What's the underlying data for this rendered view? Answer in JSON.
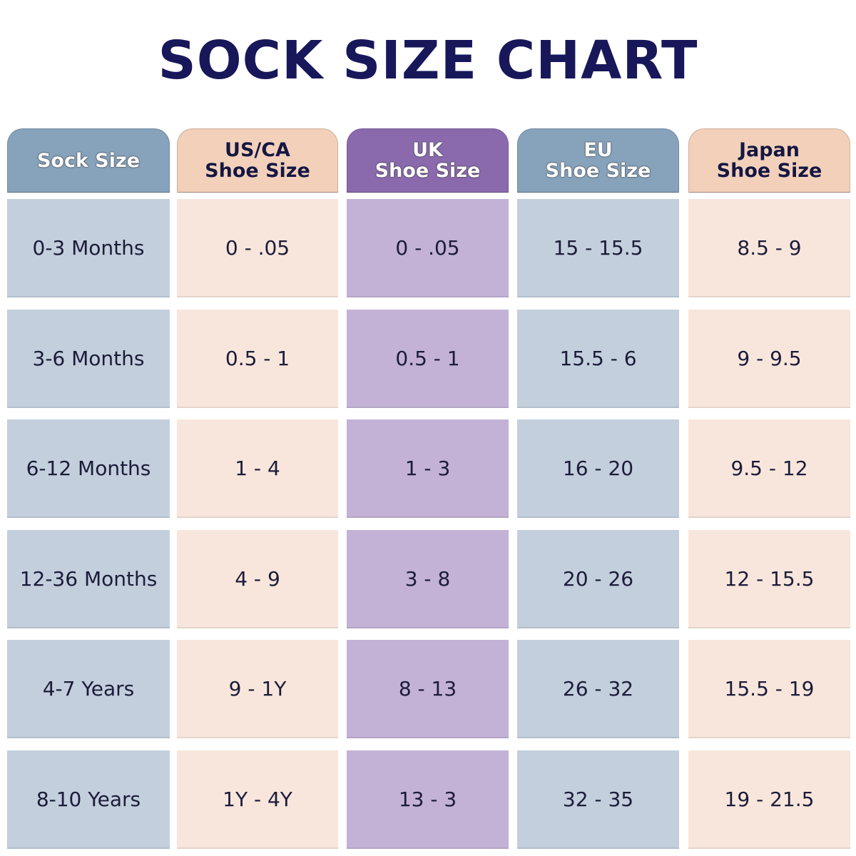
{
  "title": "SOCK SIZE CHART",
  "columns": [
    {
      "header": [
        "Sock Size"
      ],
      "header_color": "#87a2bb",
      "cell_color": "#c3cfdc",
      "header_text": "light"
    },
    {
      "header": [
        "US/CA",
        "Shoe Size"
      ],
      "header_color": "#f2d0b9",
      "cell_color": "#f8e6dc",
      "header_text": "dark"
    },
    {
      "header": [
        "UK",
        "Shoe Size"
      ],
      "header_color": "#8a6aad",
      "cell_color": "#c3b2d5",
      "header_text": "light"
    },
    {
      "header": [
        "EU",
        "Shoe Size"
      ],
      "header_color": "#87a2bb",
      "cell_color": "#c3cfdc",
      "header_text": "light"
    },
    {
      "header": [
        "Japan",
        "Shoe Size"
      ],
      "header_color": "#f2d0b9",
      "cell_color": "#f8e6dc",
      "header_text": "dark"
    }
  ],
  "rows": [
    [
      "0-3 Months",
      "0 - .05",
      "0 - .05",
      "15 - 15.5",
      "8.5 - 9"
    ],
    [
      "3-6 Months",
      "0.5 - 1",
      "0.5 - 1",
      "15.5 - 6",
      "9 - 9.5"
    ],
    [
      "6-12 Months",
      "1 - 4",
      "1 - 3",
      "16 - 20",
      "9.5 - 12"
    ],
    [
      "12-36 Months",
      "4 - 9",
      "3 - 8",
      "20 - 26",
      "12 - 15.5"
    ],
    [
      "4-7 Years",
      "9 - 1Y",
      "8 - 13",
      "26 - 32",
      "15.5 - 19"
    ],
    [
      "8-10 Years",
      "1Y - 4Y",
      "13 - 3",
      "32 - 35",
      "19 - 21.5"
    ]
  ],
  "chart_data": {
    "type": "table",
    "title": "SOCK SIZE CHART",
    "columns": [
      "Sock Size",
      "US/CA Shoe Size",
      "UK Shoe Size",
      "EU Shoe Size",
      "Japan Shoe Size"
    ],
    "rows": [
      [
        "0-3 Months",
        "0 - .05",
        "0 - .05",
        "15 - 15.5",
        "8.5 - 9"
      ],
      [
        "3-6 Months",
        "0.5 - 1",
        "0.5 - 1",
        "15.5 - 6",
        "9 - 9.5"
      ],
      [
        "6-12 Months",
        "1 - 4",
        "1 - 3",
        "16 - 20",
        "9.5 - 12"
      ],
      [
        "12-36 Months",
        "4 - 9",
        "3 - 8",
        "20 - 26",
        "12 - 15.5"
      ],
      [
        "4-7 Years",
        "9 - 1Y",
        "8 - 13",
        "26 - 32",
        "15.5 - 19"
      ],
      [
        "8-10 Years",
        "1Y - 4Y",
        "13 - 3",
        "32 - 35",
        "19 - 21.5"
      ]
    ]
  }
}
